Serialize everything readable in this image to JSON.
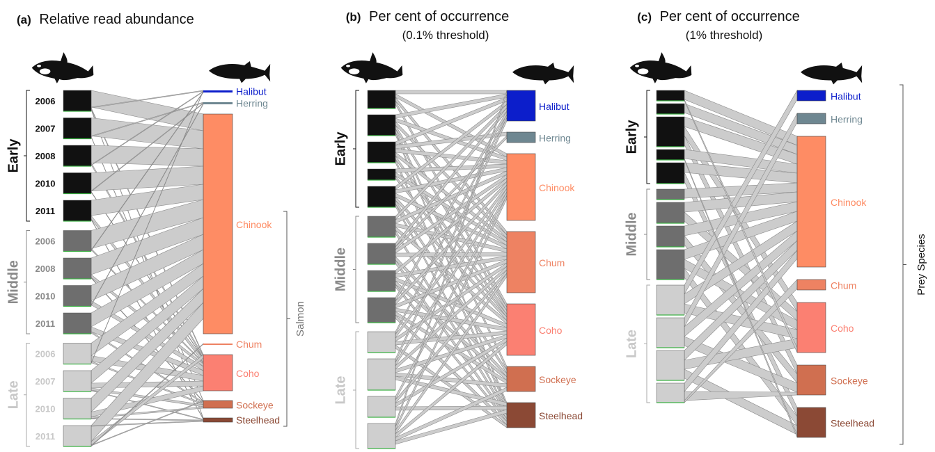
{
  "panels": [
    {
      "id": "a",
      "tag": "(a)",
      "title": "Relative read abundance",
      "subtitle": "",
      "season_labels": [
        "Early",
        "Middle",
        "Late"
      ],
      "year_blocks": [
        {
          "season": "Early",
          "year": "2006",
          "h": 30
        },
        {
          "season": "Early",
          "year": "2007",
          "h": 30
        },
        {
          "season": "Early",
          "year": "2008",
          "h": 30
        },
        {
          "season": "Early",
          "year": "2010",
          "h": 30
        },
        {
          "season": "Early",
          "year": "2011",
          "h": 30
        },
        {
          "season": "Middle",
          "year": "2006",
          "h": 30
        },
        {
          "season": "Middle",
          "year": "2008",
          "h": 30
        },
        {
          "season": "Middle",
          "year": "2010",
          "h": 30
        },
        {
          "season": "Middle",
          "year": "2011",
          "h": 30
        },
        {
          "season": "Late",
          "year": "2006",
          "h": 30
        },
        {
          "season": "Late",
          "year": "2007",
          "h": 30
        },
        {
          "season": "Late",
          "year": "2010",
          "h": 30
        },
        {
          "season": "Late",
          "year": "2011",
          "h": 30
        }
      ],
      "prey": [
        {
          "name": "Halibut",
          "h": 3
        },
        {
          "name": "Herring",
          "h": 3
        },
        {
          "name": "Chinook",
          "h": 316
        },
        {
          "name": "Chum",
          "h": 2
        },
        {
          "name": "Coho",
          "h": 52
        },
        {
          "name": "Sockeye",
          "h": 11
        },
        {
          "name": "Steelhead",
          "h": 6
        }
      ],
      "bracket_label": "Salmon"
    },
    {
      "id": "b",
      "tag": "(b)",
      "title": "Per cent of occurrence",
      "subtitle": "(0.1% threshold)",
      "season_labels": [
        "Early",
        "Middle",
        "Late"
      ],
      "year_blocks": [
        {
          "season": "Early",
          "year": "",
          "h": 26
        },
        {
          "season": "Early",
          "year": "",
          "h": 30
        },
        {
          "season": "Early",
          "year": "",
          "h": 30
        },
        {
          "season": "Early",
          "year": "",
          "h": 16
        },
        {
          "season": "Early",
          "year": "",
          "h": 30
        },
        {
          "season": "Middle",
          "year": "",
          "h": 30
        },
        {
          "season": "Middle",
          "year": "",
          "h": 30
        },
        {
          "season": "Middle",
          "year": "",
          "h": 30
        },
        {
          "season": "Middle",
          "year": "",
          "h": 36
        },
        {
          "season": "Late",
          "year": "",
          "h": 30
        },
        {
          "season": "Late",
          "year": "",
          "h": 45
        },
        {
          "season": "Late",
          "year": "",
          "h": 30
        },
        {
          "season": "Late",
          "year": "",
          "h": 36
        }
      ],
      "prey": [
        {
          "name": "Halibut",
          "h": 44
        },
        {
          "name": "Herring",
          "h": 15
        },
        {
          "name": "Chinook",
          "h": 96
        },
        {
          "name": "Chum",
          "h": 88
        },
        {
          "name": "Coho",
          "h": 74
        },
        {
          "name": "Sockeye",
          "h": 36
        },
        {
          "name": "Steelhead",
          "h": 36
        }
      ],
      "bracket_label": ""
    },
    {
      "id": "c",
      "tag": "(c)",
      "title": "Per cent of occurrence",
      "subtitle": "(1% threshold)",
      "season_labels": [
        "Early",
        "Middle",
        "Late"
      ],
      "year_blocks": [
        {
          "season": "Early",
          "year": "",
          "h": 15
        },
        {
          "season": "Early",
          "year": "",
          "h": 15
        },
        {
          "season": "Early",
          "year": "",
          "h": 43
        },
        {
          "season": "Early",
          "year": "",
          "h": 15
        },
        {
          "season": "Early",
          "year": "",
          "h": 30
        },
        {
          "season": "Middle",
          "year": "",
          "h": 15
        },
        {
          "season": "Middle",
          "year": "",
          "h": 30
        },
        {
          "season": "Middle",
          "year": "",
          "h": 30
        },
        {
          "season": "Middle",
          "year": "",
          "h": 43
        },
        {
          "season": "Late",
          "year": "",
          "h": 43
        },
        {
          "season": "Late",
          "year": "",
          "h": 43
        },
        {
          "season": "Late",
          "year": "",
          "h": 43
        },
        {
          "season": "Late",
          "year": "",
          "h": 28
        }
      ],
      "prey": [
        {
          "name": "Halibut",
          "h": 15
        },
        {
          "name": "Herring",
          "h": 15
        },
        {
          "name": "Chinook",
          "h": 188
        },
        {
          "name": "Chum",
          "h": 15
        },
        {
          "name": "Coho",
          "h": 72
        },
        {
          "name": "Sockeye",
          "h": 43
        },
        {
          "name": "Steelhead",
          "h": 43
        }
      ],
      "bracket_label": "Prey Species"
    }
  ],
  "colors": {
    "Early": "#111111",
    "Middle": "#6e6e6e",
    "Late": "#cfcfcf",
    "Early_label": "#111111",
    "Middle_label": "#8a8a8a",
    "Late_label": "#c8c8c8",
    "link": "#cccccc",
    "link_edge": "#8a8a8a",
    "Halibut": "#0c1ecb",
    "Herring": "#6e8791",
    "Chinook": "#fe8c64",
    "Chum": "#ee8262",
    "Coho": "#fb8072",
    "Sockeye": "#d06f50",
    "Steelhead": "#8b4935"
  },
  "icons": [
    "orca-icon",
    "salmon-icon"
  ]
}
